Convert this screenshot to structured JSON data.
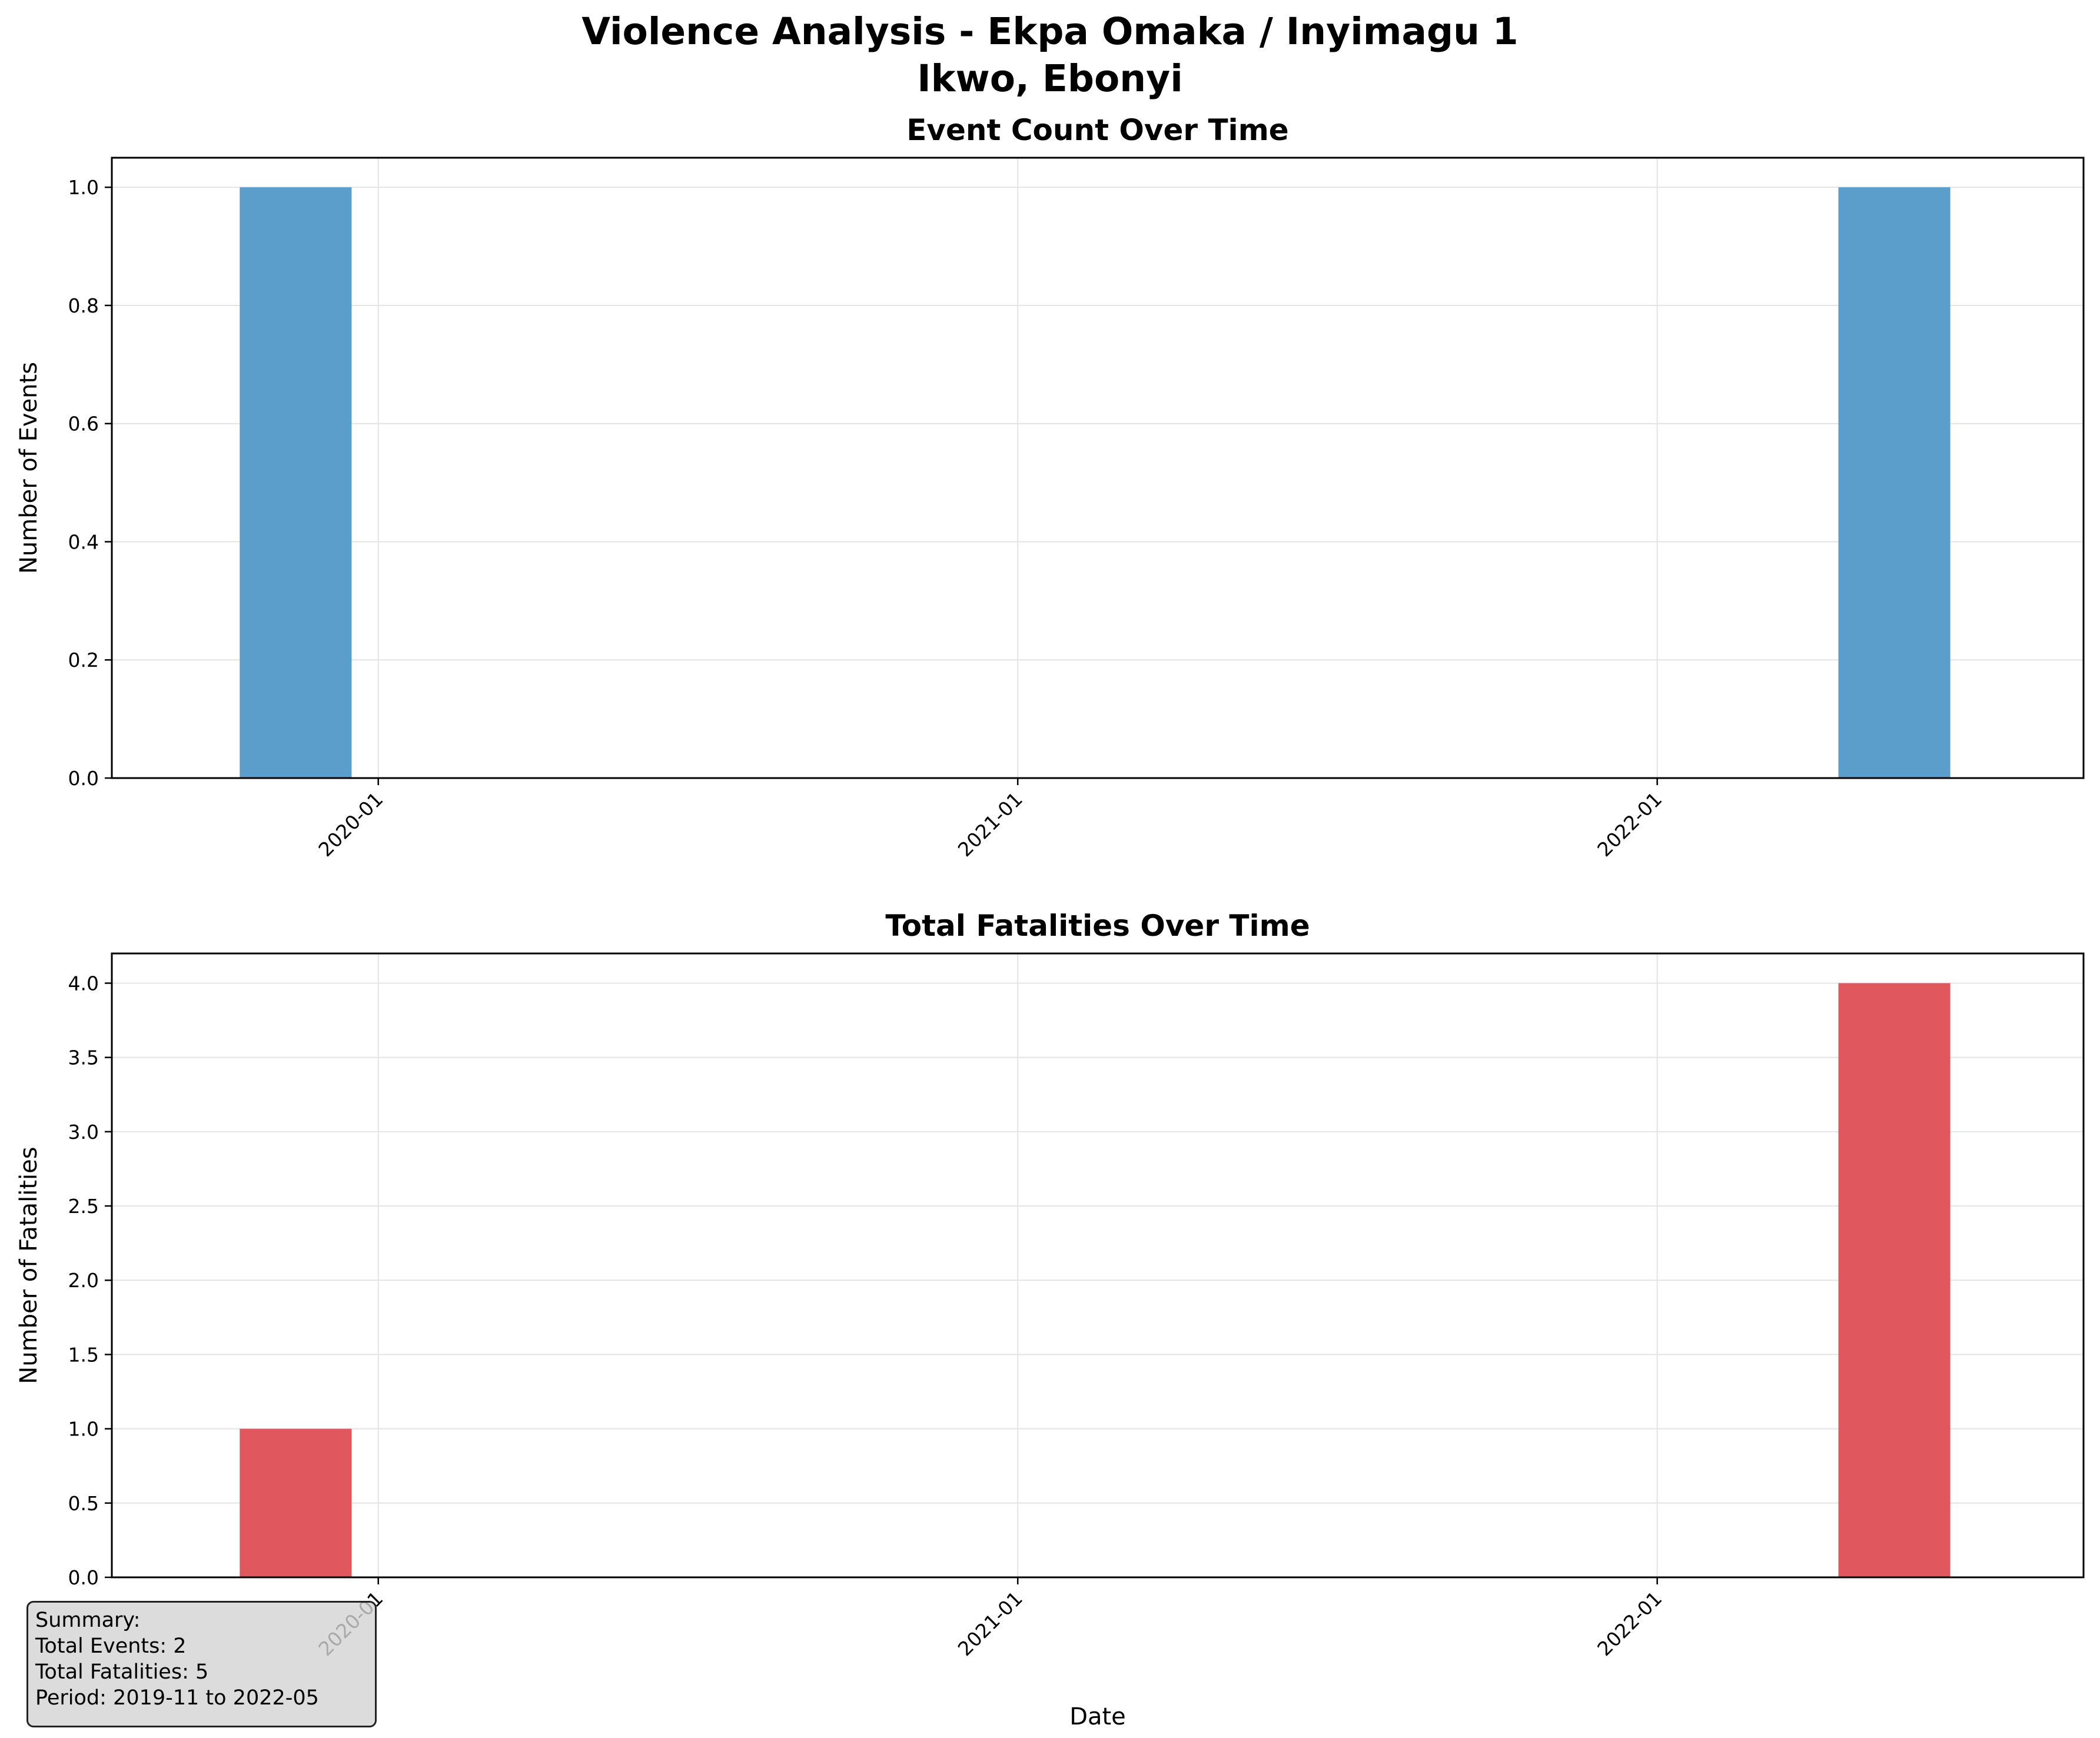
{
  "figure": {
    "suptitle_line1": "Violence Analysis - Ekpa Omaka / Inyimagu 1",
    "suptitle_line2": "Ikwo, Ebonyi"
  },
  "chart_data": [
    {
      "type": "bar",
      "title": "Event Count Over Time",
      "xlabel": "",
      "ylabel": "Number of Events",
      "x": [
        "2019-11",
        "2022-05"
      ],
      "values": [
        1,
        1
      ],
      "xlim": [
        "2019-08",
        "2022-09"
      ],
      "ylim": [
        0,
        1.05
      ],
      "yticks": [
        0.0,
        0.2,
        0.4,
        0.6,
        0.8,
        1.0
      ],
      "ytick_labels": [
        "0.0",
        "0.2",
        "0.4",
        "0.6",
        "0.8",
        "1.0"
      ],
      "xticks": [
        "2020-01",
        "2021-01",
        "2022-01"
      ],
      "grid": true,
      "color": "#5b9ecb"
    },
    {
      "type": "bar",
      "title": "Total Fatalities Over Time",
      "xlabel": "Date",
      "ylabel": "Number of Fatalities",
      "x": [
        "2019-11",
        "2022-05"
      ],
      "values": [
        1,
        4
      ],
      "xlim": [
        "2019-08",
        "2022-09"
      ],
      "ylim": [
        0,
        4.2
      ],
      "yticks": [
        0.0,
        0.5,
        1.0,
        1.5,
        2.0,
        2.5,
        3.0,
        3.5,
        4.0
      ],
      "ytick_labels": [
        "0.0",
        "0.5",
        "1.0",
        "1.5",
        "2.0",
        "2.5",
        "3.0",
        "3.5",
        "4.0"
      ],
      "xticks": [
        "2020-01",
        "2021-01",
        "2022-01"
      ],
      "grid": true,
      "color": "#e0585d"
    }
  ],
  "summary": {
    "heading": "Summary:",
    "total_events": "Total Events: 2",
    "total_fatalities": "Total Fatalities: 5",
    "period": "Period: 2019-11 to 2022-05"
  }
}
